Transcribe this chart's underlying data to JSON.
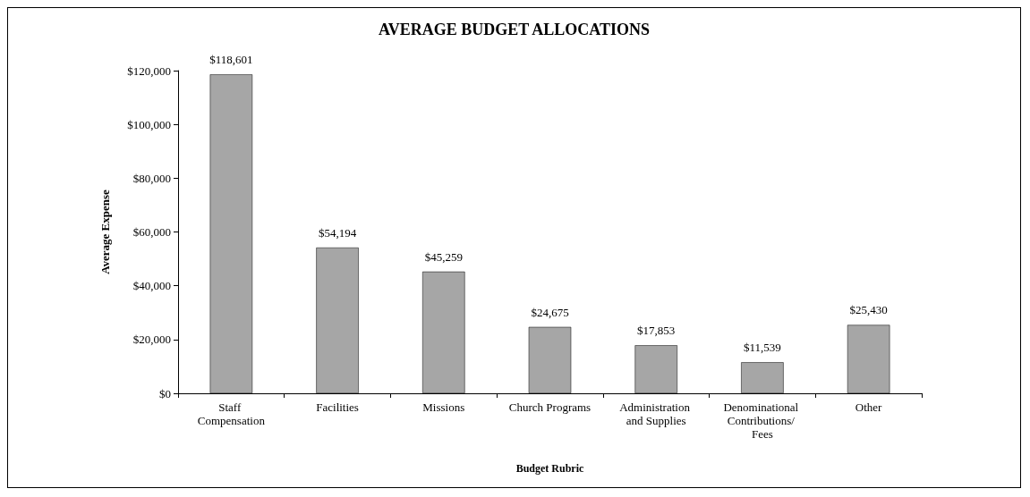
{
  "chart_data": {
    "type": "bar",
    "title": "AVERAGE BUDGET ALLOCATIONS",
    "xlabel": "Budget Rubric",
    "ylabel": "Average Expense",
    "categories": [
      "Staff Compensation",
      "Facilities",
      "Missions",
      "Church Programs",
      "Administration and Supplies",
      "Denominational Contributions/ Fees",
      "Other"
    ],
    "values": [
      118601,
      54194,
      45259,
      24675,
      17853,
      11539,
      25430
    ],
    "value_labels": [
      "$118,601",
      "$54,194",
      "$45,259",
      "$24,675",
      "$17,853",
      "$11,539",
      "$25,430"
    ],
    "color": "#a6a6a6",
    "ylim": [
      0,
      120000
    ],
    "yticks": [
      {
        "value": 0,
        "label": "$0"
      },
      {
        "value": 20000,
        "label": "$20,000"
      },
      {
        "value": 40000,
        "label": "$40,000"
      },
      {
        "value": 60000,
        "label": "$60,000"
      },
      {
        "value": 80000,
        "label": "$80,000"
      },
      {
        "value": 100000,
        "label": "$100,000"
      },
      {
        "value": 120000,
        "label": "$120,000"
      }
    ],
    "grid": false
  }
}
